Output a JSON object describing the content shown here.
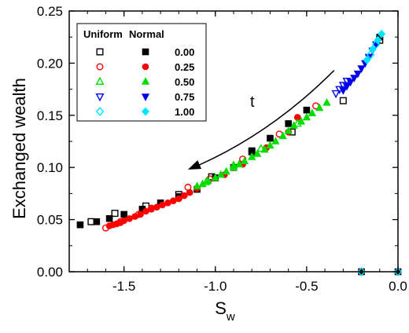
{
  "chart_data": {
    "type": "scatter",
    "title": "",
    "xlabel": "S",
    "xlabel_sub": "w",
    "ylabel": "Exchanged wealth",
    "xlim": [
      -1.8,
      0.0
    ],
    "ylim": [
      0.0,
      0.25
    ],
    "x_ticks": [
      -1.5,
      -1.0,
      -0.5,
      0.0
    ],
    "x_tick_labels": [
      "-1.5",
      "-1.0",
      "-0.5",
      "0.0"
    ],
    "y_ticks": [
      0.0,
      0.05,
      0.1,
      0.15,
      0.2,
      0.25
    ],
    "y_tick_labels": [
      "0.00",
      "0.05",
      "0.10",
      "0.15",
      "0.20",
      "0.25"
    ],
    "grid": false,
    "legend": {
      "placement": "top-left",
      "column_headers": [
        "Uniform",
        "Normal"
      ],
      "rows": [
        "0.00",
        "0.25",
        "0.50",
        "0.75",
        "1.00"
      ]
    },
    "annotation": {
      "text": "t",
      "arrow": {
        "from": [
          -0.35,
          0.193
        ],
        "to": [
          -1.15,
          0.098
        ]
      }
    },
    "series": [
      {
        "name": "0.00",
        "distribution": "Uniform",
        "color": "#000000",
        "marker": "square",
        "filled": false,
        "x": [
          -1.68,
          -1.55,
          -1.38,
          -1.2,
          -1.02,
          -0.8,
          -0.58,
          -0.3,
          -0.1
        ],
        "y": [
          0.048,
          0.056,
          0.063,
          0.074,
          0.091,
          0.115,
          0.134,
          0.164,
          0.222
        ]
      },
      {
        "name": "0.00",
        "distribution": "Normal",
        "color": "#000000",
        "marker": "square",
        "filled": true,
        "x": [
          -1.74,
          -1.65,
          -1.58,
          -1.5,
          -1.4,
          -1.3,
          -1.2,
          -1.1,
          -1.0,
          -0.9,
          -0.8,
          -0.7,
          -0.6,
          -0.5,
          -0.1,
          -0.2,
          0.0
        ],
        "y": [
          0.045,
          0.048,
          0.051,
          0.055,
          0.06,
          0.066,
          0.072,
          0.079,
          0.09,
          0.1,
          0.116,
          0.128,
          0.142,
          0.155,
          0.225,
          0.0,
          0.0
        ]
      },
      {
        "name": "0.25",
        "distribution": "Uniform",
        "color": "#ff0000",
        "marker": "circle",
        "filled": false,
        "x": [
          -1.6,
          -1.52,
          -1.42,
          -1.35,
          -1.15,
          -1.03,
          -0.85,
          -0.65,
          -0.45
        ],
        "y": [
          0.042,
          0.048,
          0.055,
          0.061,
          0.081,
          0.089,
          0.108,
          0.132,
          0.159
        ]
      },
      {
        "name": "0.25",
        "distribution": "Normal",
        "color": "#ff0000",
        "marker": "circle",
        "filled": true,
        "x": [
          -1.58,
          -1.56,
          -1.54,
          -1.52,
          -1.5,
          -1.47,
          -1.44,
          -1.41,
          -1.38,
          -1.35,
          -1.32,
          -1.29,
          -1.26,
          -1.23,
          -1.2,
          -1.17,
          -1.14,
          -1.1,
          -0.95,
          -0.85,
          -0.72,
          -0.6,
          -0.55
        ],
        "y": [
          0.044,
          0.045,
          0.046,
          0.047,
          0.049,
          0.051,
          0.053,
          0.055,
          0.058,
          0.06,
          0.062,
          0.064,
          0.066,
          0.068,
          0.07,
          0.073,
          0.076,
          0.08,
          0.093,
          0.103,
          0.119,
          0.134,
          0.148
        ]
      },
      {
        "name": "0.50",
        "distribution": "Uniform",
        "color": "#00dd00",
        "marker": "triangle-up",
        "filled": false,
        "x": [
          -1.05,
          -0.9,
          -0.75,
          -0.55
        ],
        "y": [
          0.086,
          0.102,
          0.118,
          0.142
        ]
      },
      {
        "name": "0.50",
        "distribution": "Normal",
        "color": "#00dd00",
        "marker": "triangle-up",
        "filled": true,
        "x": [
          -1.1,
          -1.07,
          -1.04,
          -1.0,
          -0.97,
          -0.94,
          -0.9,
          -0.87,
          -0.84,
          -0.8,
          -0.77,
          -0.73,
          -0.7,
          -0.67,
          -0.63,
          -0.6,
          -0.57,
          -0.53,
          -0.5,
          -0.47,
          -0.43,
          -0.39
        ],
        "y": [
          0.082,
          0.084,
          0.087,
          0.09,
          0.093,
          0.096,
          0.1,
          0.103,
          0.106,
          0.11,
          0.113,
          0.117,
          0.121,
          0.125,
          0.13,
          0.135,
          0.14,
          0.144,
          0.148,
          0.152,
          0.157,
          0.162
        ]
      },
      {
        "name": "0.75",
        "distribution": "Uniform",
        "color": "#0000ee",
        "marker": "triangle-down",
        "filled": false,
        "x": [
          -0.34,
          -0.32,
          -0.3,
          -0.28
        ],
        "y": [
          0.171,
          0.175,
          0.179,
          0.183
        ]
      },
      {
        "name": "0.75",
        "distribution": "Normal",
        "color": "#0000ee",
        "marker": "triangle-down",
        "filled": true,
        "x": [
          -0.3,
          -0.28,
          -0.26,
          -0.24,
          -0.22,
          -0.2,
          -0.18,
          -0.16,
          -0.14,
          -0.12
        ],
        "y": [
          0.174,
          0.178,
          0.182,
          0.186,
          0.19,
          0.195,
          0.2,
          0.206,
          0.212,
          0.218
        ]
      },
      {
        "name": "1.00",
        "distribution": "Uniform",
        "color": "#00e5ff",
        "marker": "diamond",
        "filled": false,
        "x": [
          -0.15,
          -0.12,
          -0.2,
          0.0
        ],
        "y": [
          0.208,
          0.218,
          0.0,
          0.0
        ]
      },
      {
        "name": "1.00",
        "distribution": "Normal",
        "color": "#00e5ff",
        "marker": "diamond",
        "filled": true,
        "x": [
          -0.17,
          -0.14,
          -0.11,
          -0.09
        ],
        "y": [
          0.203,
          0.213,
          0.222,
          0.228
        ]
      }
    ]
  }
}
